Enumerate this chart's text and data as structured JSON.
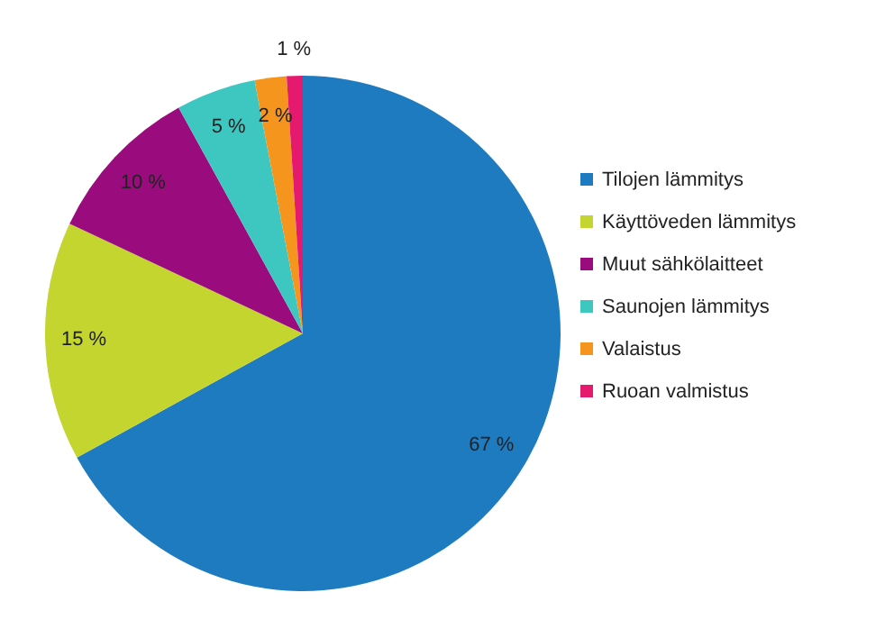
{
  "chart_data": {
    "type": "pie",
    "categories": [
      "Tilojen lämmitys",
      "Käyttöveden lämmitys",
      "Muut sähkölaitteet",
      "Saunojen lämmitys",
      "Valaistus",
      "Ruoan valmistus"
    ],
    "values": [
      67,
      15,
      10,
      5,
      2,
      1
    ],
    "colors": [
      "#1f7bbf",
      "#c3d52e",
      "#9a0c7e",
      "#3ec7c0",
      "#f5951e",
      "#e5196e"
    ],
    "value_labels": [
      "67 %",
      "15 %",
      "10 %",
      "5 %",
      "2 %",
      "1 %"
    ],
    "legend": "right"
  }
}
